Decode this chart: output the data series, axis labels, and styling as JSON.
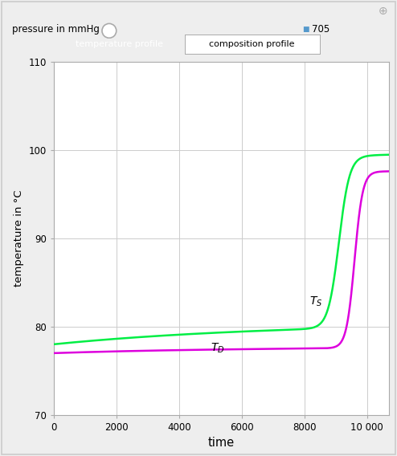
{
  "xlabel": "time",
  "ylabel": "temperature in °C",
  "xlim": [
    0,
    10700
  ],
  "ylim": [
    70,
    110
  ],
  "xticks": [
    0,
    2000,
    4000,
    6000,
    8000,
    10000
  ],
  "yticks": [
    70,
    80,
    90,
    100,
    110
  ],
  "xtick_labels": [
    "0",
    "2000",
    "4000",
    "6000",
    "8000",
    "10 000"
  ],
  "ytick_labels": [
    "70",
    "80",
    "90",
    "100",
    "110"
  ],
  "color_Ts": "#00ee44",
  "color_Td": "#dd00dd",
  "background_plot": "#ffffff",
  "background_outer": "#eeeeee",
  "grid_color": "#cccccc",
  "pressure_label": "pressure in mmHg",
  "pressure_value": "705",
  "btn1": "temperature profile",
  "btn2": "composition profile",
  "linewidth": 1.8
}
